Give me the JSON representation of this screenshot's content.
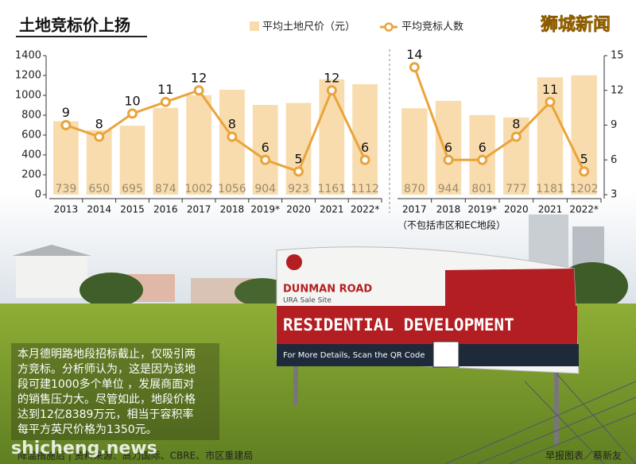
{
  "title": "土地竞标价上扬",
  "brand": "狮城新闻",
  "chart_data": [
    {
      "type": "bar",
      "categories": [
        "2013",
        "2014",
        "2015",
        "2016",
        "2017",
        "2018",
        "2019*",
        "2020",
        "2021",
        "2022*"
      ],
      "series": [
        {
          "name": "平均土地尺价（元）",
          "type": "bar",
          "color": "#f8dcae",
          "values": [
            739,
            650,
            695,
            874,
            1002,
            1056,
            904,
            923,
            1161,
            1112
          ]
        },
        {
          "name": "平均竞标人数",
          "type": "line",
          "axis": "y2",
          "color": "#e9a43c",
          "values": [
            9,
            8,
            10,
            11,
            12,
            8,
            6,
            5,
            12,
            6
          ]
        }
      ],
      "ylim": [
        0,
        1400
      ],
      "yticks": [
        0,
        200,
        400,
        600,
        800,
        1000,
        1200,
        1400
      ],
      "y2lim": [
        3,
        15
      ]
    },
    {
      "type": "bar",
      "categories": [
        "2017",
        "2018",
        "2019*",
        "2020",
        "2021",
        "2022*"
      ],
      "series": [
        {
          "type": "bar",
          "color": "#f8dcae",
          "values": [
            870,
            944,
            801,
            777,
            1181,
            1202
          ]
        },
        {
          "type": "line",
          "axis": "y2",
          "color": "#e9a43c",
          "values": [
            14,
            6,
            6,
            8,
            11,
            5
          ]
        }
      ],
      "ylim": [
        0,
        1400
      ],
      "y2lim": [
        3,
        15
      ],
      "y2ticks": [
        3,
        6,
        9,
        12,
        15
      ],
      "note": "（不包括市区和EC地段）"
    }
  ],
  "photo": {
    "road": "DUNMAN ROAD",
    "site": "URA Sale Site",
    "headline": "RESIDENTIAL DEVELOPMENT",
    "details": "For More Details, Scan the QR Code"
  },
  "caption": [
    "本月德明路地段招标截止，仅吸引两",
    "方竞标。分析师认为，这是因为该地",
    "段可建1000多个单位 ，发展商面对",
    "的销售压力大。尽管如此，地段价格",
    "达到12亿8389万元，相当于容积率",
    "每平方英尺价格为1350元。"
  ],
  "source": "降温措施后 | 资料来源：高力国际、CBRE、市区重建局",
  "credit": "早报图表／蔡新友",
  "watermark": "shicheng.news"
}
